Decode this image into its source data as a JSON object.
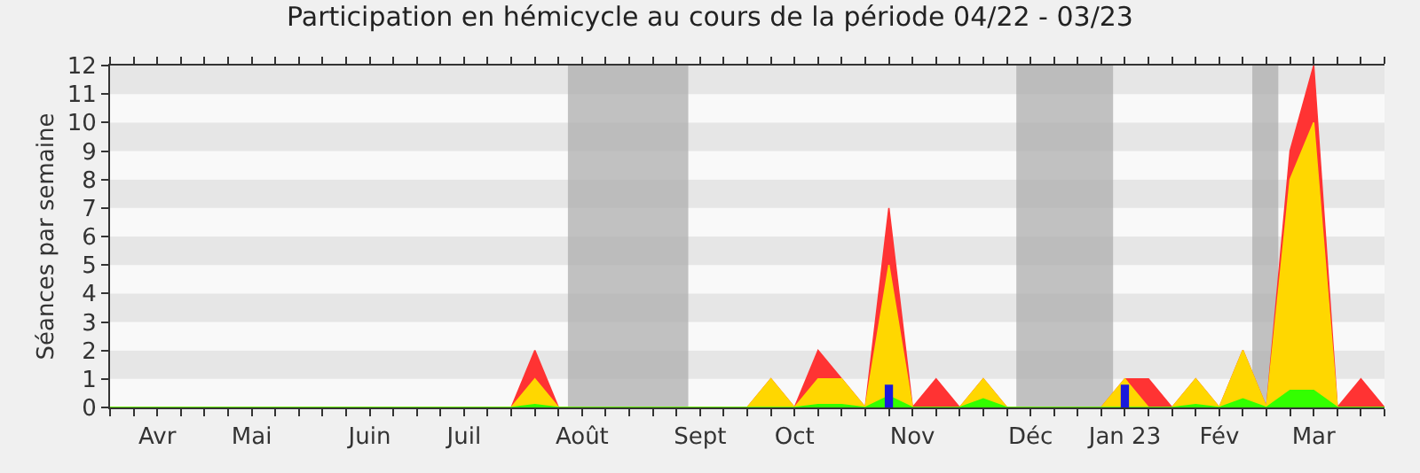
{
  "chart_data": {
    "type": "area",
    "title": "Participation en hémicycle au cours de la période 04/22 - 03/23",
    "ylabel": "Séances par semaine",
    "categories": [
      null,
      null,
      "Avr",
      null,
      null,
      null,
      "Mai",
      null,
      null,
      null,
      null,
      "Juin",
      null,
      null,
      null,
      "Juil",
      null,
      null,
      null,
      null,
      "Août",
      null,
      null,
      null,
      null,
      "Sept",
      null,
      null,
      null,
      "Oct",
      null,
      null,
      null,
      null,
      "Nov",
      null,
      null,
      null,
      null,
      "Déc",
      null,
      null,
      null,
      "Jan 23",
      null,
      null,
      null,
      "Fév",
      null,
      null,
      null,
      "Mar",
      null,
      null,
      null
    ],
    "series": [
      {
        "color": "#ff3333",
        "values": [
          0,
          0,
          0,
          0,
          0,
          0,
          0,
          0,
          0,
          0,
          0,
          0,
          0,
          0,
          0,
          0,
          0,
          0,
          2,
          0,
          0,
          0,
          0,
          0,
          0,
          0,
          0,
          0,
          1,
          0,
          2,
          1,
          0,
          7,
          0,
          1,
          0,
          1,
          0,
          0,
          0,
          0,
          0,
          1,
          1,
          0,
          1,
          0,
          2,
          0,
          9,
          12,
          0,
          1,
          0
        ]
      },
      {
        "color": "#ffd700",
        "values": [
          0,
          0,
          0,
          0,
          0,
          0,
          0,
          0,
          0,
          0,
          0,
          0,
          0,
          0,
          0,
          0,
          0,
          0,
          1,
          0,
          0,
          0,
          0,
          0,
          0,
          0,
          0,
          0,
          1,
          0,
          1,
          1,
          0,
          5,
          0,
          0,
          0,
          1,
          0,
          0,
          0,
          0,
          0,
          1,
          0,
          0,
          1,
          0,
          2,
          0,
          8,
          10,
          0,
          0,
          0
        ]
      },
      {
        "color": "#33ff00",
        "values": [
          0,
          0,
          0,
          0,
          0,
          0,
          0,
          0,
          0,
          0,
          0,
          0,
          0,
          0,
          0,
          0,
          0,
          0,
          0.1,
          0,
          0,
          0,
          0,
          0,
          0,
          0,
          0,
          0,
          0,
          0,
          0.1,
          0.1,
          0,
          0.4,
          0,
          0,
          0,
          0.3,
          0,
          0,
          0,
          0,
          0,
          0,
          0,
          0,
          0.1,
          0,
          0.3,
          0,
          0.6,
          0.6,
          0,
          0,
          0
        ]
      },
      {
        "type": "bar",
        "color": "#1a1adc",
        "values": [
          null,
          null,
          null,
          null,
          null,
          null,
          null,
          null,
          null,
          null,
          null,
          null,
          null,
          null,
          null,
          null,
          null,
          null,
          null,
          null,
          null,
          null,
          null,
          null,
          null,
          null,
          null,
          null,
          null,
          null,
          null,
          null,
          null,
          0.8,
          null,
          null,
          null,
          null,
          null,
          null,
          null,
          null,
          null,
          0.8,
          null,
          null,
          null,
          null,
          null,
          null,
          null,
          null,
          null,
          null,
          null
        ]
      }
    ],
    "ylim": [
      0,
      12
    ],
    "yticks": [
      0,
      1,
      2,
      3,
      4,
      5,
      6,
      7,
      8,
      9,
      10,
      11,
      12
    ]
  }
}
